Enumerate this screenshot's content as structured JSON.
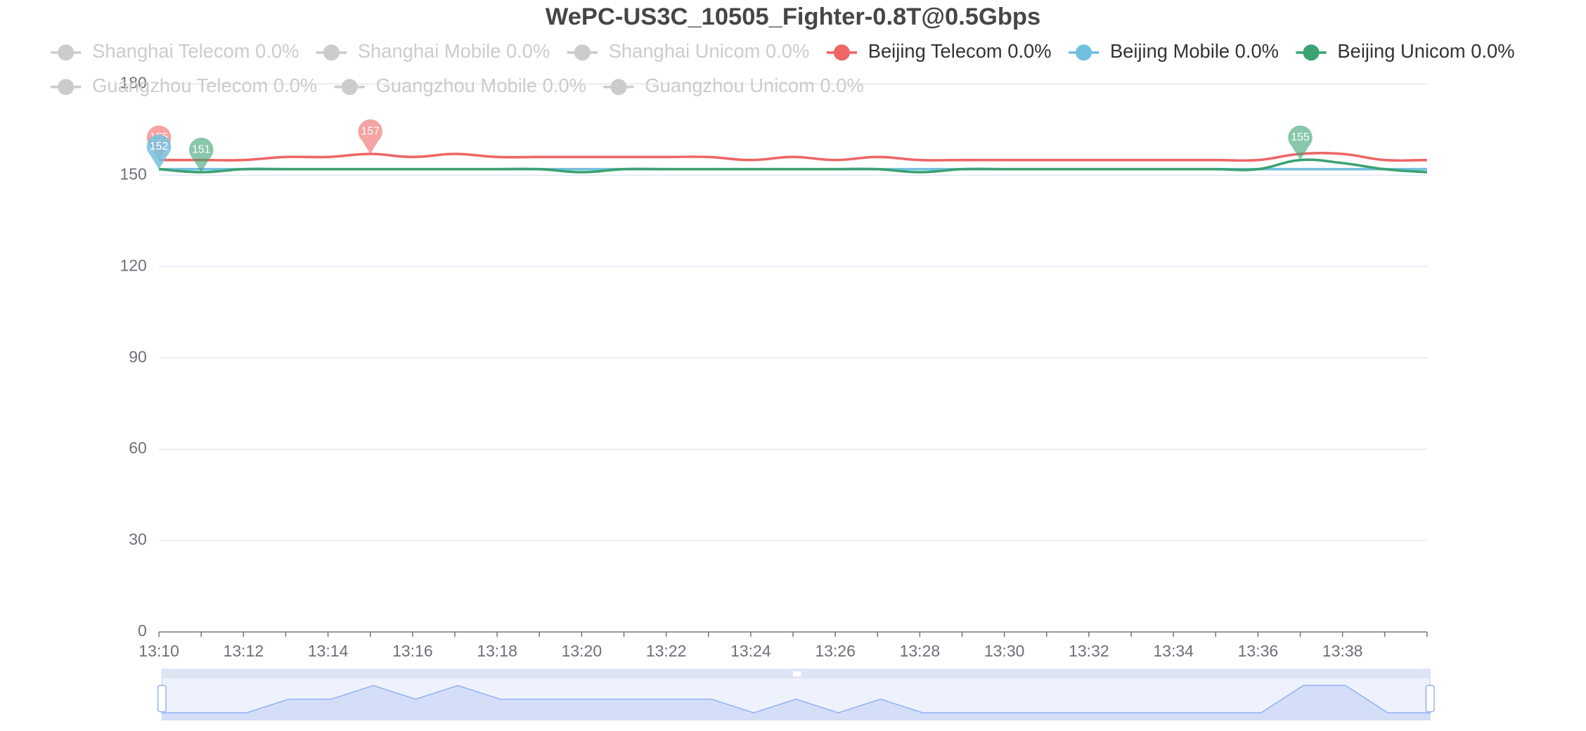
{
  "chart_data": {
    "type": "line",
    "title": "WePC-US3C_10505_Fighter-0.8T@0.5Gbps",
    "categories": [
      "13:10",
      null,
      "13:12",
      null,
      "13:14",
      null,
      "13:16",
      null,
      "13:18",
      null,
      "13:20",
      null,
      "13:22",
      null,
      "13:24",
      null,
      "13:26",
      null,
      "13:28",
      null,
      "13:30",
      null,
      "13:32",
      null,
      "13:34",
      null,
      "13:36",
      null,
      "13:38",
      null,
      null
    ],
    "ylim": [
      0,
      180
    ],
    "yticks": [
      0,
      30,
      60,
      90,
      120,
      150,
      180
    ],
    "grid": true,
    "smooth": true,
    "inactive_color": "#cccccc",
    "series": [
      {
        "name": "Shanghai Telecom 0.0%",
        "selected": false
      },
      {
        "name": "Shanghai Mobile 0.0%",
        "selected": false
      },
      {
        "name": "Shanghai Unicom 0.0%",
        "selected": false
      },
      {
        "name": "Beijing Telecom 0.0%",
        "selected": true,
        "color": "#ee6666",
        "values": [
          155,
          155,
          155,
          156,
          156,
          157,
          156,
          157,
          156,
          156,
          156,
          156,
          156,
          156,
          155,
          156,
          155,
          156,
          155,
          155,
          155,
          155,
          155,
          155,
          155,
          155,
          155,
          157,
          157,
          155,
          155
        ]
      },
      {
        "name": "Beijing Mobile 0.0%",
        "selected": true,
        "color": "#73c0de",
        "values": [
          152,
          152,
          152,
          152,
          152,
          152,
          152,
          152,
          152,
          152,
          152,
          152,
          152,
          152,
          152,
          152,
          152,
          152,
          152,
          152,
          152,
          152,
          152,
          152,
          152,
          152,
          152,
          152,
          152,
          152,
          152
        ]
      },
      {
        "name": "Beijing Unicom 0.0%",
        "selected": true,
        "color": "#3ba272",
        "values": [
          152,
          151,
          152,
          152,
          152,
          152,
          152,
          152,
          152,
          152,
          151,
          152,
          152,
          152,
          152,
          152,
          152,
          152,
          151,
          152,
          152,
          152,
          152,
          152,
          152,
          152,
          152,
          155,
          154,
          152,
          151
        ]
      },
      {
        "name": "Guangzhou Telecom 0.0%",
        "selected": false
      },
      {
        "name": "Guangzhou Mobile 0.0%",
        "selected": false
      },
      {
        "name": "Guangzhou Unicom 0.0%",
        "selected": false
      }
    ]
  }
}
